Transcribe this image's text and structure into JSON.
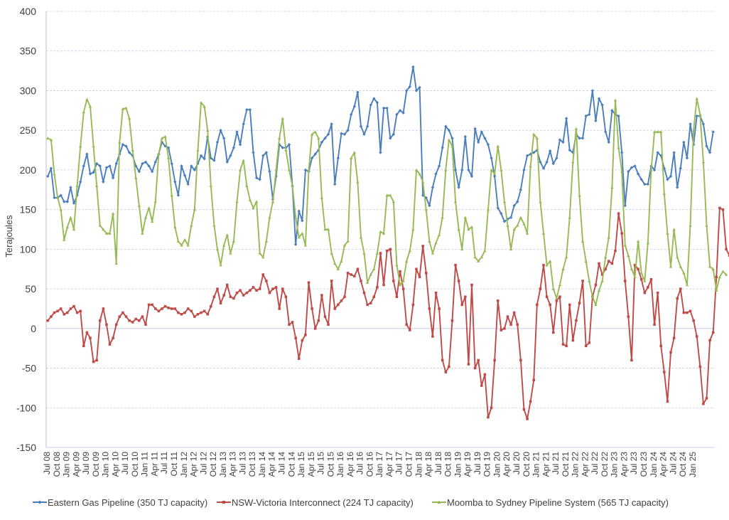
{
  "chart_data": {
    "type": "line",
    "ylabel": "Terajoules",
    "xlabel": "",
    "ylim": [
      -150,
      400
    ],
    "yticks": [
      -150,
      -100,
      -50,
      0,
      50,
      100,
      150,
      200,
      250,
      300,
      350,
      400
    ],
    "grid": true,
    "legend_position": "bottom",
    "x_tick_labels": [
      "Jul 08",
      "Oct 08",
      "Jan 09",
      "Apr 09",
      "Jul 09",
      "Oct 09",
      "Jan 10",
      "Apr 10",
      "Jul 10",
      "Oct 10",
      "Jan 11",
      "Apr 11",
      "Jul 11",
      "Oct 11",
      "Jan 12",
      "Apr 12",
      "Jul 12",
      "Oct 12",
      "Jan 13",
      "Apr 13",
      "Jul 13",
      "Oct 13",
      "Jan 14",
      "Apr 14",
      "Jul 14",
      "Oct 14",
      "Jan 15",
      "Apr 15",
      "Jul 15",
      "Oct 15",
      "Jan 16",
      "Apr 16",
      "Jul 16",
      "Oct 16",
      "Jan 17",
      "Apr 17",
      "Jul 17",
      "Oct 17",
      "Jan 18",
      "Apr 18",
      "Jul 18",
      "Oct 18",
      "Jan 19",
      "Apr 19",
      "Jul 19",
      "Oct 19",
      "Jan 20",
      "Apr 20",
      "Jul 20",
      "Oct 20",
      "Jan 21",
      "Apr 21",
      "Jul 21",
      "Oct 21",
      "Jan 22",
      "Apr 22",
      "Jul 22",
      "Oct 22",
      "Jan 23",
      "Apr 23",
      "Jul 23",
      "Oct 23",
      "Jan 24",
      "Apr 24",
      "Jul 24",
      "Oct 24",
      "Jan 25"
    ],
    "series": [
      {
        "name": "Eastern Gas Pipeline (350 TJ capacity)",
        "color": "#4a7ebb",
        "marker": "diamond",
        "values": [
          192,
          202,
          165,
          165,
          168,
          160,
          160,
          178,
          158,
          168,
          185,
          205,
          220,
          195,
          197,
          208,
          205,
          185,
          203,
          205,
          190,
          208,
          220,
          232,
          230,
          222,
          218,
          205,
          198,
          208,
          210,
          205,
          198,
          210,
          220,
          235,
          230,
          228,
          208,
          185,
          168,
          205,
          193,
          182,
          205,
          200,
          208,
          218,
          214,
          242,
          215,
          212,
          235,
          250,
          240,
          210,
          218,
          228,
          248,
          232,
          258,
          276,
          276,
          222,
          190,
          188,
          218,
          222,
          198,
          163,
          192,
          232,
          228,
          228,
          232,
          180,
          106,
          148,
          136,
          200,
          198,
          215,
          220,
          225,
          235,
          240,
          245,
          258,
          182,
          215,
          246,
          245,
          250,
          270,
          280,
          298,
          255,
          245,
          255,
          282,
          290,
          285,
          222,
          278,
          278,
          240,
          245,
          270,
          275,
          272,
          300,
          305,
          330,
          300,
          304,
          168,
          165,
          155,
          178,
          195,
          205,
          228,
          255,
          250,
          240,
          200,
          178,
          200,
          242,
          200,
          192,
          252,
          235,
          248,
          240,
          232,
          215,
          192,
          152,
          145,
          135,
          138,
          140,
          155,
          160,
          175,
          200,
          218,
          220,
          222,
          225,
          210,
          202,
          210,
          224,
          208,
          215,
          238,
          235,
          265,
          225,
          222,
          245,
          240,
          240,
          268,
          270,
          300,
          262,
          290,
          282,
          248,
          235,
          275,
          270,
          268,
          222,
          155,
          198,
          203,
          205,
          195,
          188,
          182,
          182,
          205,
          200,
          222,
          218,
          202,
          188,
          192,
          222,
          178,
          202,
          235,
          215,
          258,
          232,
          268,
          268,
          258,
          230,
          222,
          248
        ]
      },
      {
        "name": "NSW-Victoria Interconnect (224 TJ capacity)",
        "color": "#be4b48",
        "marker": "square",
        "values": [
          10,
          15,
          20,
          22,
          25,
          18,
          20,
          25,
          28,
          20,
          22,
          -22,
          -5,
          -12,
          -42,
          -40,
          10,
          25,
          5,
          -20,
          -12,
          5,
          15,
          20,
          15,
          10,
          8,
          12,
          10,
          15,
          5,
          30,
          30,
          25,
          22,
          25,
          28,
          26,
          25,
          25,
          20,
          18,
          20,
          25,
          22,
          15,
          18,
          20,
          22,
          18,
          28,
          40,
          50,
          32,
          42,
          55,
          40,
          38,
          45,
          48,
          42,
          45,
          48,
          52,
          48,
          50,
          68,
          60,
          45,
          50,
          52,
          25,
          50,
          40,
          5,
          8,
          -12,
          -38,
          -15,
          -8,
          58,
          25,
          0,
          10,
          42,
          15,
          5,
          60,
          25,
          30,
          35,
          40,
          70,
          68,
          66,
          75,
          60,
          45,
          30,
          32,
          40,
          52,
          95,
          55,
          98,
          100,
          60,
          40,
          72,
          50,
          5,
          -2,
          30,
          75,
          65,
          104,
          70,
          25,
          -10,
          45,
          25,
          -40,
          -55,
          -48,
          10,
          80,
          60,
          30,
          40,
          -45,
          55,
          -50,
          -40,
          -72,
          -58,
          -112,
          -100,
          -40,
          35,
          -2,
          0,
          15,
          5,
          20,
          5,
          -40,
          -102,
          -114,
          -92,
          -65,
          30,
          50,
          80,
          40,
          30,
          -5,
          35,
          40,
          -20,
          -22,
          30,
          -15,
          10,
          32,
          60,
          -22,
          -18,
          40,
          55,
          82,
          68,
          75,
          85,
          82,
          98,
          145,
          120,
          60,
          15,
          -40,
          80,
          75,
          62,
          45,
          52,
          62,
          5,
          45,
          -22,
          -55,
          -92,
          -30,
          -12,
          38,
          50,
          20,
          20,
          22,
          10,
          -10,
          -48,
          -95,
          -88,
          -15,
          -5,
          65,
          152,
          150,
          100,
          92,
          128
        ]
      },
      {
        "name": "Moomba to Sydney Pipeline System (565 TJ capacity)",
        "color": "#98b954",
        "marker": "triangle",
        "values": [
          240,
          238,
          195,
          165,
          150,
          112,
          128,
          140,
          125,
          180,
          230,
          273,
          289,
          280,
          230,
          180,
          130,
          125,
          120,
          120,
          145,
          82,
          235,
          277,
          278,
          265,
          225,
          190,
          155,
          120,
          140,
          152,
          135,
          160,
          220,
          240,
          242,
          215,
          168,
          128,
          110,
          105,
          112,
          105,
          130,
          150,
          225,
          285,
          280,
          250,
          180,
          130,
          100,
          80,
          105,
          118,
          95,
          110,
          160,
          200,
          212,
          180,
          162,
          152,
          160,
          95,
          90,
          110,
          140,
          160,
          200,
          240,
          265,
          225,
          200,
          180,
          140,
          115,
          120,
          105,
          200,
          245,
          248,
          240,
          165,
          125,
          125,
          95,
          82,
          75,
          85,
          105,
          110,
          215,
          222,
          185,
          115,
          95,
          58,
          68,
          75,
          95,
          122,
          120,
          168,
          168,
          160,
          80,
          55,
          60,
          85,
          98,
          125,
          200,
          195,
          185,
          150,
          110,
          95,
          108,
          118,
          140,
          200,
          238,
          230,
          160,
          125,
          100,
          140,
          125,
          128,
          90,
          85,
          90,
          98,
          150,
          200,
          195,
          230,
          200,
          160,
          130,
          100,
          125,
          130,
          140,
          132,
          120,
          205,
          245,
          240,
          160,
          120,
          80,
          85,
          50,
          38,
          55,
          75,
          90,
          140,
          210,
          252,
          168,
          110,
          85,
          60,
          40,
          30,
          48,
          60,
          90,
          115,
          178,
          288,
          228,
          198,
          105,
          92,
          75,
          65,
          110,
          70,
          60,
          108,
          200,
          248,
          248,
          248,
          170,
          120,
          78,
          125,
          90,
          78,
          70,
          55,
          130,
          250,
          290,
          270,
          210,
          130,
          78,
          75,
          48,
          65,
          72,
          68
        ]
      }
    ]
  }
}
